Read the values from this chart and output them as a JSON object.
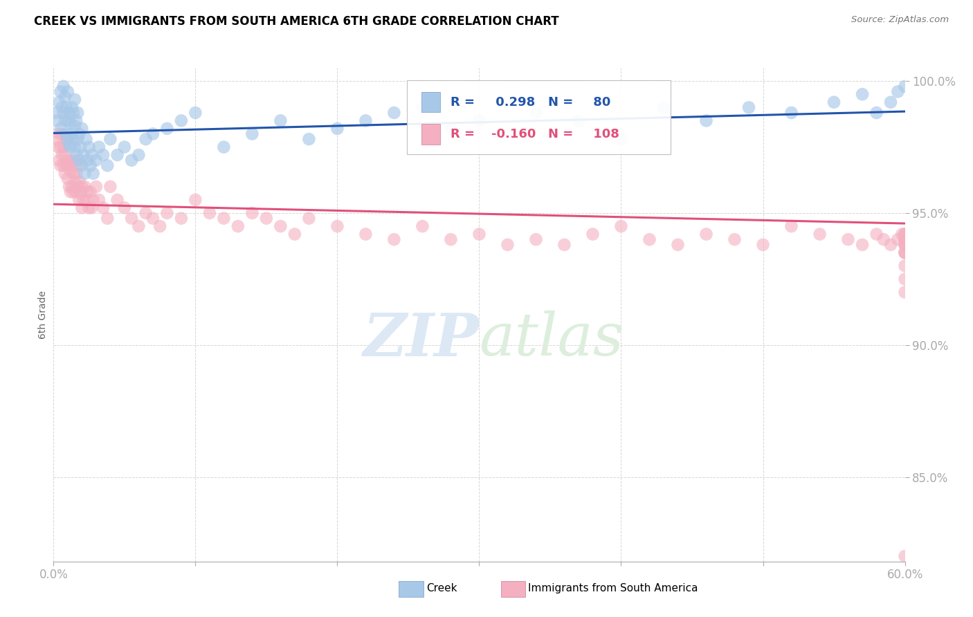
{
  "title": "CREEK VS IMMIGRANTS FROM SOUTH AMERICA 6TH GRADE CORRELATION CHART",
  "source": "Source: ZipAtlas.com",
  "ylabel": "6th Grade",
  "xmin": 0.0,
  "xmax": 0.6,
  "ymin": 0.818,
  "ymax": 1.005,
  "yticks": [
    0.85,
    0.9,
    0.95,
    1.0
  ],
  "ytick_labels": [
    "85.0%",
    "90.0%",
    "95.0%",
    "100.0%"
  ],
  "creek_R": 0.298,
  "creek_N": 80,
  "immig_R": -0.16,
  "immig_N": 108,
  "creek_color": "#a8c8e8",
  "immig_color": "#f4b0c0",
  "creek_line_color": "#2255aa",
  "immig_line_color": "#e0507a",
  "legend_creek_label": "Creek",
  "legend_immig_label": "Immigrants from South America",
  "creek_x": [
    0.002,
    0.003,
    0.004,
    0.005,
    0.005,
    0.006,
    0.007,
    0.007,
    0.008,
    0.008,
    0.009,
    0.009,
    0.01,
    0.01,
    0.01,
    0.011,
    0.011,
    0.012,
    0.012,
    0.013,
    0.013,
    0.014,
    0.014,
    0.015,
    0.015,
    0.015,
    0.016,
    0.016,
    0.017,
    0.017,
    0.018,
    0.018,
    0.019,
    0.02,
    0.02,
    0.021,
    0.022,
    0.023,
    0.024,
    0.025,
    0.026,
    0.027,
    0.028,
    0.03,
    0.032,
    0.035,
    0.038,
    0.04,
    0.045,
    0.05,
    0.055,
    0.06,
    0.065,
    0.07,
    0.08,
    0.09,
    0.1,
    0.12,
    0.14,
    0.16,
    0.18,
    0.2,
    0.22,
    0.24,
    0.26,
    0.28,
    0.3,
    0.34,
    0.37,
    0.4,
    0.43,
    0.46,
    0.49,
    0.52,
    0.55,
    0.57,
    0.58,
    0.59,
    0.595,
    0.6
  ],
  "creek_y": [
    0.988,
    0.985,
    0.992,
    0.982,
    0.996,
    0.99,
    0.988,
    0.998,
    0.985,
    0.994,
    0.98,
    0.99,
    0.978,
    0.985,
    0.996,
    0.976,
    0.988,
    0.975,
    0.984,
    0.98,
    0.99,
    0.978,
    0.988,
    0.975,
    0.983,
    0.993,
    0.972,
    0.985,
    0.978,
    0.988,
    0.97,
    0.98,
    0.975,
    0.968,
    0.982,
    0.972,
    0.965,
    0.978,
    0.97,
    0.975,
    0.968,
    0.972,
    0.965,
    0.97,
    0.975,
    0.972,
    0.968,
    0.978,
    0.972,
    0.975,
    0.97,
    0.972,
    0.978,
    0.98,
    0.982,
    0.985,
    0.988,
    0.975,
    0.98,
    0.985,
    0.978,
    0.982,
    0.985,
    0.988,
    0.99,
    0.982,
    0.985,
    0.988,
    0.985,
    0.978,
    0.99,
    0.985,
    0.99,
    0.988,
    0.992,
    0.995,
    0.988,
    0.992,
    0.996,
    0.998
  ],
  "immig_x": [
    0.002,
    0.003,
    0.004,
    0.004,
    0.005,
    0.005,
    0.006,
    0.006,
    0.007,
    0.007,
    0.008,
    0.008,
    0.009,
    0.009,
    0.01,
    0.01,
    0.01,
    0.011,
    0.011,
    0.012,
    0.012,
    0.013,
    0.013,
    0.014,
    0.014,
    0.015,
    0.015,
    0.016,
    0.016,
    0.017,
    0.017,
    0.018,
    0.018,
    0.019,
    0.02,
    0.02,
    0.021,
    0.022,
    0.023,
    0.024,
    0.025,
    0.026,
    0.027,
    0.028,
    0.03,
    0.032,
    0.035,
    0.038,
    0.04,
    0.045,
    0.05,
    0.055,
    0.06,
    0.065,
    0.07,
    0.075,
    0.08,
    0.09,
    0.1,
    0.11,
    0.12,
    0.13,
    0.14,
    0.15,
    0.16,
    0.17,
    0.18,
    0.2,
    0.22,
    0.24,
    0.26,
    0.28,
    0.3,
    0.32,
    0.34,
    0.36,
    0.38,
    0.4,
    0.42,
    0.44,
    0.46,
    0.48,
    0.5,
    0.52,
    0.54,
    0.56,
    0.57,
    0.58,
    0.585,
    0.59,
    0.595,
    0.598,
    0.6,
    0.6,
    0.6,
    0.6,
    0.6,
    0.6,
    0.6,
    0.6,
    0.6,
    0.6,
    0.6,
    0.6,
    0.6,
    0.6,
    0.6,
    0.6
  ],
  "immig_y": [
    0.978,
    0.975,
    0.97,
    0.98,
    0.968,
    0.975,
    0.972,
    0.98,
    0.968,
    0.975,
    0.965,
    0.972,
    0.968,
    0.978,
    0.963,
    0.97,
    0.978,
    0.96,
    0.968,
    0.958,
    0.966,
    0.96,
    0.97,
    0.958,
    0.965,
    0.962,
    0.97,
    0.958,
    0.965,
    0.96,
    0.968,
    0.955,
    0.962,
    0.958,
    0.952,
    0.96,
    0.955,
    0.96,
    0.955,
    0.958,
    0.952,
    0.958,
    0.952,
    0.955,
    0.96,
    0.955,
    0.952,
    0.948,
    0.96,
    0.955,
    0.952,
    0.948,
    0.945,
    0.95,
    0.948,
    0.945,
    0.95,
    0.948,
    0.955,
    0.95,
    0.948,
    0.945,
    0.95,
    0.948,
    0.945,
    0.942,
    0.948,
    0.945,
    0.942,
    0.94,
    0.945,
    0.94,
    0.942,
    0.938,
    0.94,
    0.938,
    0.942,
    0.945,
    0.94,
    0.938,
    0.942,
    0.94,
    0.938,
    0.945,
    0.942,
    0.94,
    0.938,
    0.942,
    0.94,
    0.938,
    0.94,
    0.942,
    0.935,
    0.938,
    0.94,
    0.942,
    0.938,
    0.94,
    0.942,
    0.935,
    0.938,
    0.94,
    0.942,
    0.935,
    0.92,
    0.925,
    0.93,
    0.82
  ]
}
